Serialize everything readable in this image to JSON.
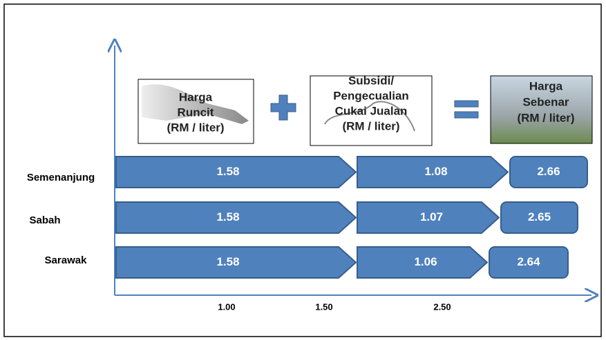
{
  "headers": [
    {
      "lines": [
        "Harga",
        "Runcit",
        "(RM / liter)"
      ]
    },
    {
      "lines": [
        "Subsidi/",
        "Pengecualian",
        "Cukai Jualan",
        "(RM / liter)"
      ]
    },
    {
      "lines": [
        "Harga",
        "Sebenar",
        "(RM / liter)"
      ]
    }
  ],
  "rows": [
    {
      "label": "Semenanjung",
      "retail": "1.58",
      "subsidy": "1.08",
      "actual": "2.66"
    },
    {
      "label": "Sabah",
      "retail": "1.58",
      "subsidy": "1.07",
      "actual": "2.65"
    },
    {
      "label": "Sarawak",
      "retail": "1.58",
      "subsidy": "1.06",
      "actual": "2.64"
    }
  ],
  "axis_labels": [
    "1.00",
    "1.50",
    "2.50"
  ]
}
